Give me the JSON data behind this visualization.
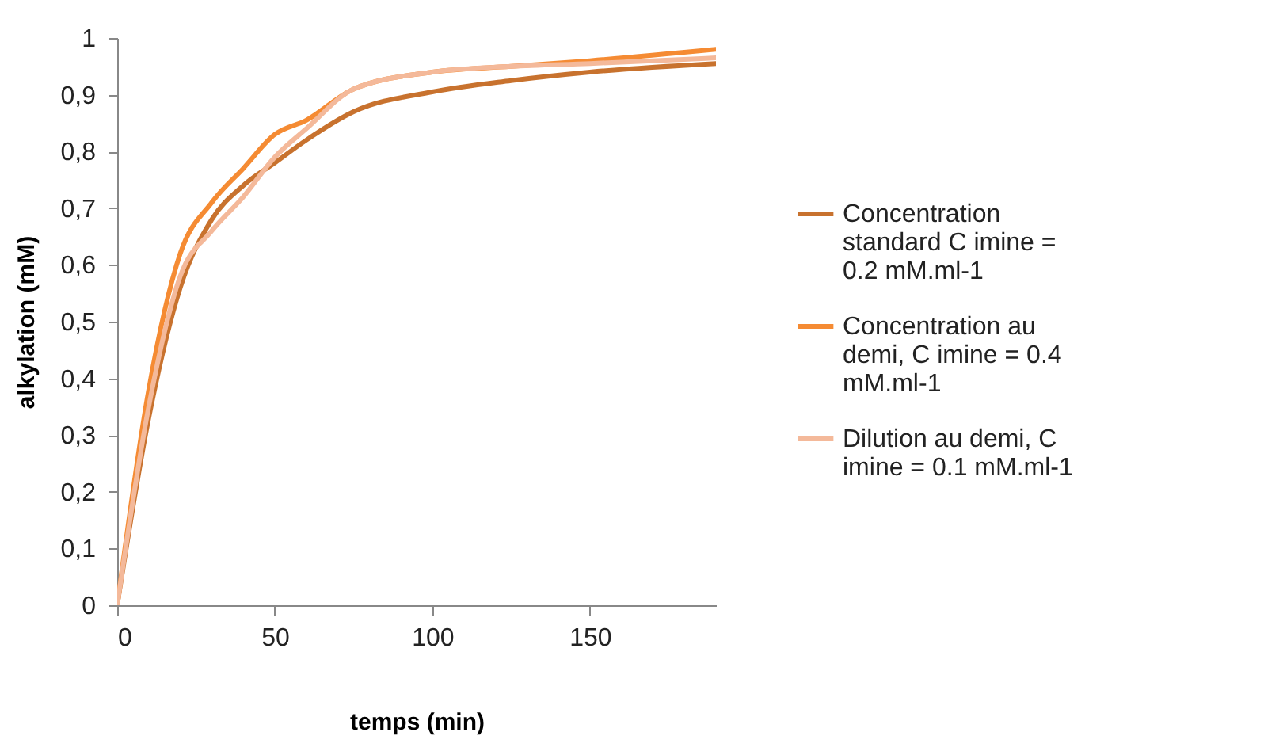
{
  "chart_data": {
    "type": "line",
    "xlabel": "temps (min)",
    "ylabel": "alkylation (mM)",
    "xlim": [
      0,
      190
    ],
    "xticks": [
      0,
      50,
      100,
      150
    ],
    "ylim": [
      0,
      1
    ],
    "yticks": [
      {
        "value": 0,
        "label": "0"
      },
      {
        "value": 0.1,
        "label": "0,1"
      },
      {
        "value": 0.2,
        "label": "0,2"
      },
      {
        "value": 0.3,
        "label": "0,3"
      },
      {
        "value": 0.4,
        "label": "0,4"
      },
      {
        "value": 0.5,
        "label": "0,5"
      },
      {
        "value": 0.6,
        "label": "0,6"
      },
      {
        "value": 0.7,
        "label": "0,7"
      },
      {
        "value": 0.8,
        "label": "0,8"
      },
      {
        "value": 0.9,
        "label": "0,9"
      },
      {
        "value": 1,
        "label": "1"
      }
    ],
    "x": [
      0,
      10,
      20,
      30,
      40,
      50,
      60,
      75,
      100,
      125,
      150,
      190
    ],
    "grid": false,
    "legend": "right",
    "marker": "none",
    "line_style": "solid",
    "series": [
      {
        "name": "Concentration standard C imine = 0.2 mM.ml-1",
        "color": "#c8722e",
        "values": [
          0,
          0.33,
          0.56,
          0.68,
          0.74,
          0.78,
          0.82,
          0.87,
          0.905,
          0.925,
          0.94,
          0.955
        ]
      },
      {
        "name": "Concentration au demi, C imine = 0.4 mM.ml-1",
        "color": "#f58b33",
        "values": [
          0,
          0.38,
          0.62,
          0.71,
          0.77,
          0.83,
          0.855,
          0.91,
          0.94,
          0.95,
          0.96,
          0.98
        ]
      },
      {
        "name": "Dilution au demi, C imine = 0.1 mM.ml-1",
        "color": "#f4b99a",
        "values": [
          0,
          0.35,
          0.58,
          0.66,
          0.72,
          0.79,
          0.84,
          0.91,
          0.94,
          0.95,
          0.955,
          0.965
        ]
      }
    ]
  }
}
